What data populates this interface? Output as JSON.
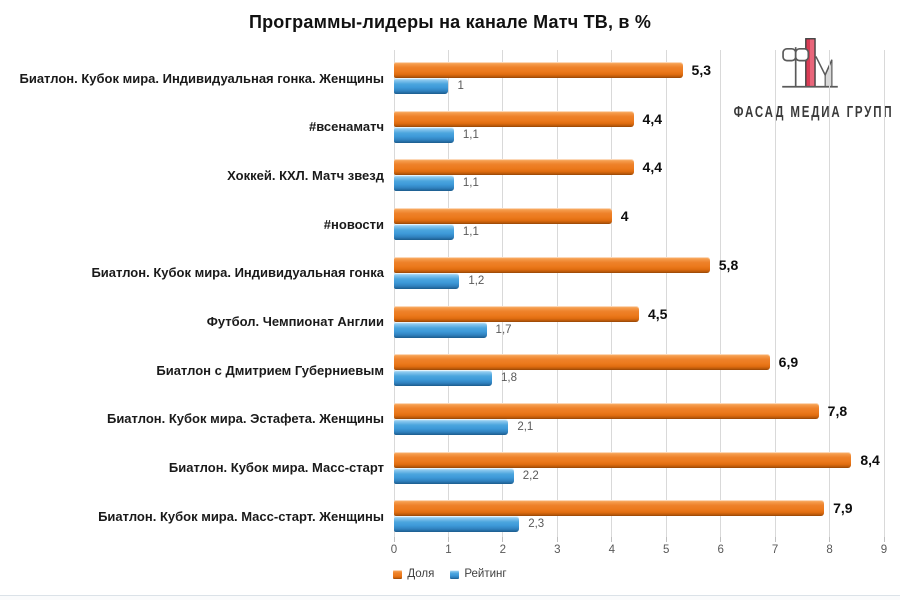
{
  "title": "Программы-лидеры на канале Матч ТВ, в %",
  "logo": {
    "text": "ФАСАД МЕДИА ГРУПП",
    "accent_color": "#e04f63",
    "gray_color": "#d9d9d9",
    "line_color": "#5a5a5a"
  },
  "chart_data": {
    "type": "bar",
    "orientation": "horizontal",
    "title": "Программы-лидеры на канале Матч ТВ, в %",
    "categories": [
      "Биатлон. Кубок мира. Индивидуальная гонка. Женщины",
      "#всенаматч",
      "Хоккей. КХЛ. Матч звезд",
      "#новости",
      "Биатлон. Кубок мира. Индивидуальная гонка",
      "Футбол. Чемпионат Англии",
      "Биатлон с Дмитрием Губерниевым",
      "Биатлон. Кубок мира. Эстафета. Женщины",
      "Биатлон. Кубок мира. Масс-старт",
      "Биатлон. Кубок мира. Масс-старт. Женщины"
    ],
    "series": [
      {
        "name": "Доля",
        "color": "#ec7a1d",
        "values": [
          5.3,
          4.4,
          4.4,
          4,
          5.8,
          4.5,
          6.9,
          7.8,
          8.4,
          7.9
        ],
        "labels": [
          "5,3",
          "4,4",
          "4,4",
          "4",
          "5,8",
          "4,5",
          "6,9",
          "7,8",
          "8,4",
          "7,9"
        ]
      },
      {
        "name": "Рейтинг",
        "color": "#3d99d8",
        "values": [
          1,
          1.1,
          1.1,
          1.1,
          1.2,
          1.7,
          1.8,
          2.1,
          2.2,
          2.3
        ],
        "labels": [
          "1",
          "1,1",
          "1,1",
          "1,1",
          "1,2",
          "1,7",
          "1,8",
          "2,1",
          "2,2",
          "2,3"
        ]
      }
    ],
    "xlim": [
      0,
      9
    ],
    "x_ticks": [
      "0",
      "1",
      "2",
      "3",
      "4",
      "5",
      "6",
      "7",
      "8",
      "9"
    ],
    "grid": true,
    "gridline_color": "#d9d9d9",
    "legend_position": "bottom"
  }
}
